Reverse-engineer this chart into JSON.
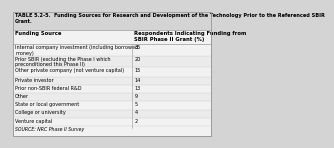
{
  "title_line1": "TABLE 5.2-5.  Funding Sources for Research and Development of the Technology Prior to the Referenced SBIR",
  "title_line2": "Grant.",
  "col1_header": "Funding Source",
  "col2_header": "Respondents Indicating Funding from\nSBIR Phase II Grant (%)",
  "rows": [
    [
      "Internal company investment (including borrowed\nmoney)",
      "35"
    ],
    [
      "Prior SBIR (excluding the Phase I which\npreconditioned this Phase II)",
      "20"
    ],
    [
      "Other private company (not venture capital)",
      "15"
    ],
    [
      "Private investor",
      "14"
    ],
    [
      "Prior non-SBIR federal R&D",
      "13"
    ],
    [
      "Other",
      "9"
    ],
    [
      "State or local government",
      "5"
    ],
    [
      "College or university",
      "4"
    ],
    [
      "Venture capital",
      "2"
    ]
  ],
  "footer": "SOURCE: NRC Phase II Survey",
  "bg_color": "#d4d4d4",
  "table_bg": "#f2f2f2",
  "header_row_bg": "#e0e0e0",
  "border_color": "#999999",
  "title_fontsize": 3.6,
  "header_fontsize": 3.8,
  "row_fontsize": 3.5,
  "footer_fontsize": 3.3,
  "col_split": 0.6
}
